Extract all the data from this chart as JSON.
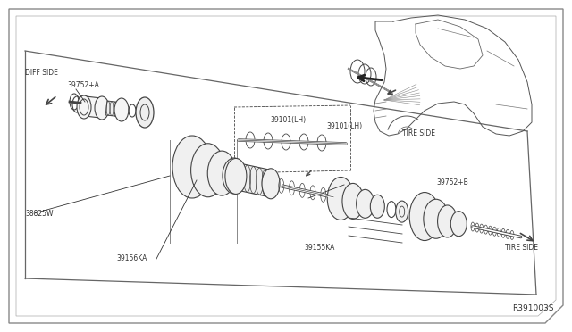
{
  "bg_color": "#ffffff",
  "border_color": "#555555",
  "line_color": "#444444",
  "diagram_id": "R391003S",
  "labels": {
    "diff_side": "DIFF SIDE",
    "tire_side_upper": "TIRE SIDE",
    "tire_side_lower": "TIRE SIDE",
    "part_39752A": "39752+A",
    "part_38825W": "38825W",
    "part_39156KA": "39156KA",
    "part_39101LH_upper": "39101(LH)",
    "part_39101LH_lower": "39101(LH)",
    "part_39155KA": "39155KA",
    "part_39752B": "39752+B"
  },
  "font_size_labels": 5.5,
  "font_size_id": 6.5
}
